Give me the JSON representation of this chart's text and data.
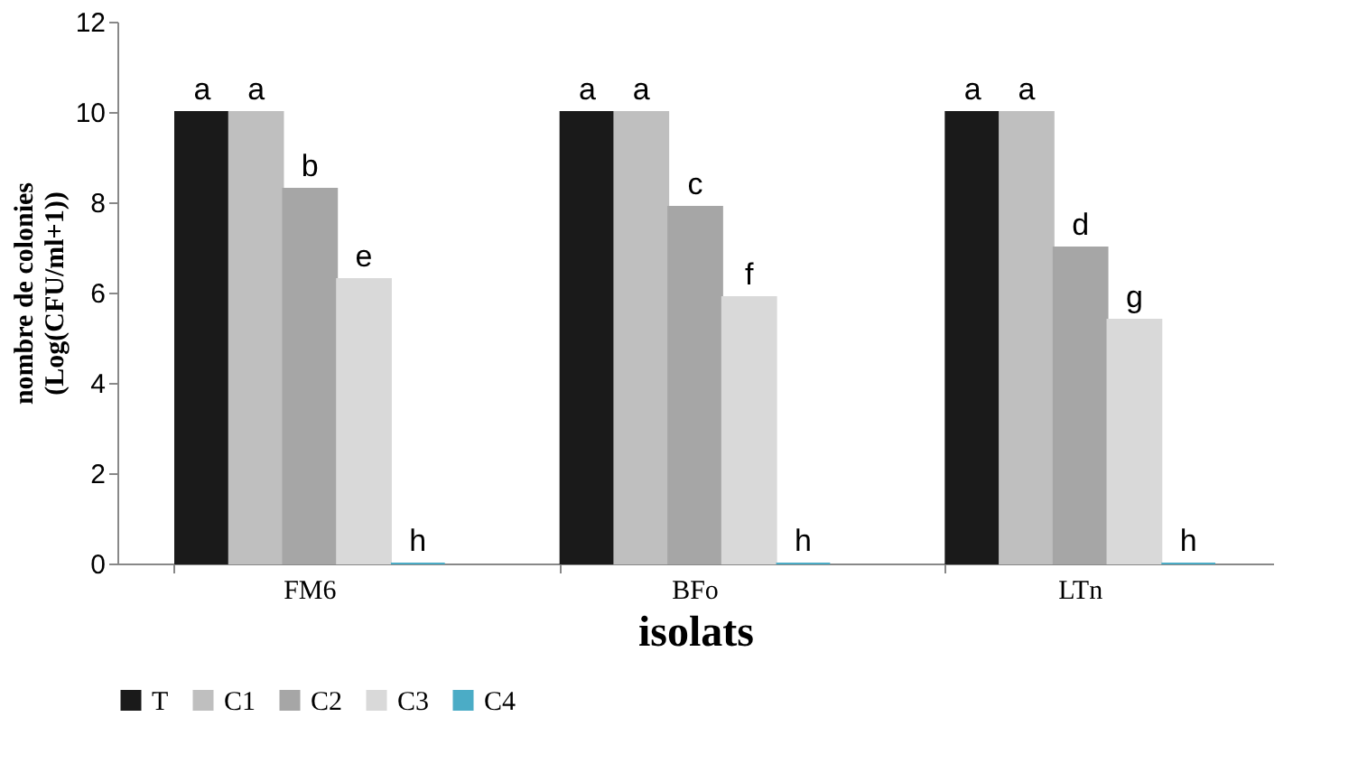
{
  "chart_data": {
    "type": "bar",
    "xlabel": "isolats",
    "ylabel": "nombre de colonies\n(Log(CFU/ml+1))",
    "categories": [
      "FM6",
      "BFo",
      "LTn"
    ],
    "series": [
      {
        "name": "T",
        "color": "#1a1a1a",
        "values": [
          10,
          10,
          10
        ],
        "value_labels": [
          "a",
          "a",
          "a"
        ]
      },
      {
        "name": "C1",
        "color": "#bfbfbf",
        "values": [
          10,
          10,
          10
        ],
        "value_labels": [
          "a",
          "a",
          "a"
        ]
      },
      {
        "name": "C2",
        "color": "#a6a6a6",
        "values": [
          8.3,
          7.9,
          7.0
        ],
        "value_labels": [
          "b",
          "c",
          "d"
        ]
      },
      {
        "name": "C3",
        "color": "#d9d9d9",
        "values": [
          6.3,
          5.9,
          5.4
        ],
        "value_labels": [
          "e",
          "f",
          "g"
        ]
      },
      {
        "name": "C4",
        "color": "#4bacc6",
        "values": [
          0,
          0,
          0
        ],
        "value_labels": [
          "h",
          "h",
          "h"
        ]
      }
    ],
    "ylim": [
      0,
      12
    ],
    "yticks": [
      0,
      2,
      4,
      6,
      8,
      10,
      12
    ],
    "grid": false,
    "legend": "bottom"
  }
}
